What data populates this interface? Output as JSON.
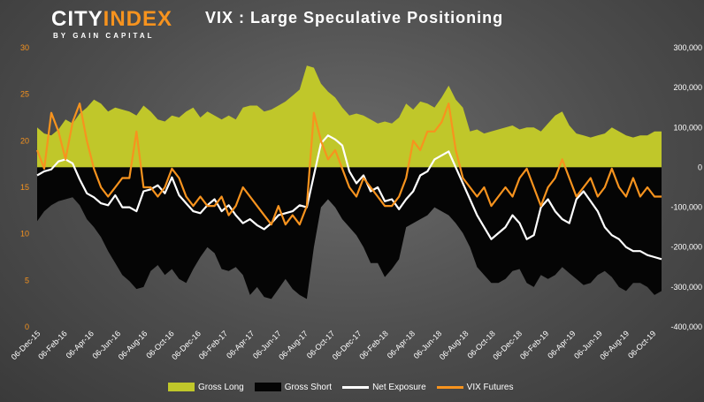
{
  "brand": {
    "name_part1": "CITY",
    "name_part2": "INDEX",
    "tagline": "BY GAIN CAPITAL"
  },
  "chart_data": {
    "type": "area",
    "title": "VIX : Large Speculative Positioning",
    "left_axis": {
      "ylim": [
        0,
        30
      ],
      "ticks": [
        "0",
        "5",
        "10",
        "15",
        "20",
        "25",
        "30"
      ],
      "color": "#f7931e"
    },
    "right_axis": {
      "ylim": [
        -400000,
        300000
      ],
      "ticks": [
        "-400,000",
        "-300,000",
        "-200,000",
        "-100,000",
        "0",
        "100,000",
        "200,000",
        "300,000"
      ]
    },
    "x_ticks": [
      "06-Dec-15",
      "06-Feb-16",
      "06-Apr-16",
      "06-Jun-16",
      "06-Aug-16",
      "06-Oct-16",
      "06-Dec-16",
      "06-Feb-17",
      "06-Apr-17",
      "06-Jun-17",
      "06-Aug-17",
      "06-Oct-17",
      "06-Dec-17",
      "06-Feb-18",
      "06-Apr-18",
      "06-Jun-18",
      "06-Aug-18",
      "06-Oct-18",
      "06-Dec-18",
      "06-Feb-19",
      "06-Apr-19",
      "06-Jun-19",
      "06-Aug-19",
      "06-Oct-19"
    ],
    "legend_position": "bottom",
    "series": [
      {
        "name": "Gross Long",
        "axis": "right",
        "color": "#c0c72a",
        "values": [
          100000,
          85000,
          80000,
          95000,
          120000,
          110000,
          135000,
          150000,
          170000,
          160000,
          140000,
          150000,
          145000,
          140000,
          130000,
          155000,
          140000,
          120000,
          115000,
          130000,
          125000,
          140000,
          150000,
          125000,
          140000,
          130000,
          120000,
          130000,
          120000,
          150000,
          155000,
          155000,
          140000,
          145000,
          155000,
          165000,
          180000,
          195000,
          255000,
          250000,
          210000,
          190000,
          175000,
          150000,
          130000,
          135000,
          130000,
          120000,
          110000,
          115000,
          110000,
          125000,
          160000,
          145000,
          165000,
          160000,
          150000,
          175000,
          205000,
          170000,
          150000,
          90000,
          95000,
          85000,
          90000,
          95000,
          100000,
          105000,
          95000,
          100000,
          100000,
          90000,
          110000,
          130000,
          140000,
          105000,
          85000,
          80000,
          75000,
          80000,
          85000,
          100000,
          90000,
          80000,
          75000,
          80000,
          80000,
          90000,
          90000
        ]
      },
      {
        "name": "Gross Short",
        "axis": "right",
        "color": "#050505",
        "values": [
          -135000,
          -110000,
          -95000,
          -85000,
          -80000,
          -75000,
          -95000,
          -130000,
          -150000,
          -175000,
          -210000,
          -240000,
          -270000,
          -285000,
          -305000,
          -300000,
          -260000,
          -245000,
          -270000,
          -255000,
          -280000,
          -290000,
          -255000,
          -225000,
          -200000,
          -215000,
          -255000,
          -260000,
          -250000,
          -270000,
          -320000,
          -300000,
          -325000,
          -330000,
          -305000,
          -280000,
          -305000,
          -320000,
          -330000,
          -200000,
          -100000,
          -80000,
          -100000,
          -130000,
          -150000,
          -170000,
          -200000,
          -240000,
          -240000,
          -275000,
          -255000,
          -230000,
          -150000,
          -140000,
          -130000,
          -120000,
          -100000,
          -110000,
          -120000,
          -140000,
          -165000,
          -200000,
          -250000,
          -270000,
          -290000,
          -290000,
          -280000,
          -260000,
          -255000,
          -290000,
          -300000,
          -270000,
          -280000,
          -270000,
          -250000,
          -265000,
          -280000,
          -295000,
          -290000,
          -270000,
          -260000,
          -275000,
          -300000,
          -310000,
          -290000,
          -290000,
          -300000,
          -320000,
          -310000
        ]
      },
      {
        "name": "Net Exposure",
        "axis": "right",
        "color": "#ffffff",
        "values": [
          -20000,
          -10000,
          -5000,
          15000,
          20000,
          10000,
          -30000,
          -65000,
          -75000,
          -90000,
          -95000,
          -70000,
          -100000,
          -100000,
          -110000,
          -60000,
          -55000,
          -45000,
          -65000,
          -25000,
          -70000,
          -90000,
          -110000,
          -115000,
          -95000,
          -80000,
          -110000,
          -95000,
          -120000,
          -140000,
          -130000,
          -145000,
          -155000,
          -140000,
          -120000,
          -115000,
          -110000,
          -95000,
          -100000,
          -20000,
          60000,
          80000,
          70000,
          55000,
          -10000,
          -40000,
          -20000,
          -60000,
          -50000,
          -85000,
          -80000,
          -105000,
          -80000,
          -60000,
          -20000,
          -10000,
          20000,
          30000,
          40000,
          0,
          -40000,
          -80000,
          -120000,
          -150000,
          -180000,
          -165000,
          -150000,
          -120000,
          -140000,
          -180000,
          -170000,
          -100000,
          -80000,
          -110000,
          -130000,
          -140000,
          -80000,
          -60000,
          -85000,
          -110000,
          -150000,
          -170000,
          -180000,
          -200000,
          -210000,
          -210000,
          -220000,
          -225000,
          -230000
        ]
      },
      {
        "name": "VIX Futures",
        "axis": "left",
        "color": "#f7931e",
        "values": [
          19,
          17,
          23,
          21,
          18,
          22,
          24,
          20,
          17,
          15,
          14,
          15,
          16,
          16,
          21,
          15,
          15,
          14,
          15,
          17,
          16,
          14,
          13,
          14,
          13,
          13,
          14,
          12,
          13,
          15,
          14,
          13,
          12,
          11,
          13,
          11,
          12,
          11,
          13,
          23,
          20,
          18,
          19,
          17,
          15,
          14,
          16,
          15,
          14,
          13,
          13,
          14,
          16,
          20,
          19,
          21,
          21,
          22,
          24,
          19,
          16,
          15,
          14,
          15,
          13,
          14,
          15,
          14,
          16,
          17,
          15,
          13,
          15,
          16,
          18,
          16,
          14,
          15,
          16,
          14,
          15,
          17,
          15,
          14,
          16,
          14,
          15,
          14,
          14
        ]
      }
    ]
  },
  "legend": [
    {
      "label": "Gross Long",
      "kind": "box",
      "color": "#c0c72a"
    },
    {
      "label": "Gross Short",
      "kind": "box",
      "color": "#050505"
    },
    {
      "label": "Net Exposure",
      "kind": "line",
      "color": "#ffffff"
    },
    {
      "label": "VIX Futures",
      "kind": "line",
      "color": "#f7931e"
    }
  ]
}
